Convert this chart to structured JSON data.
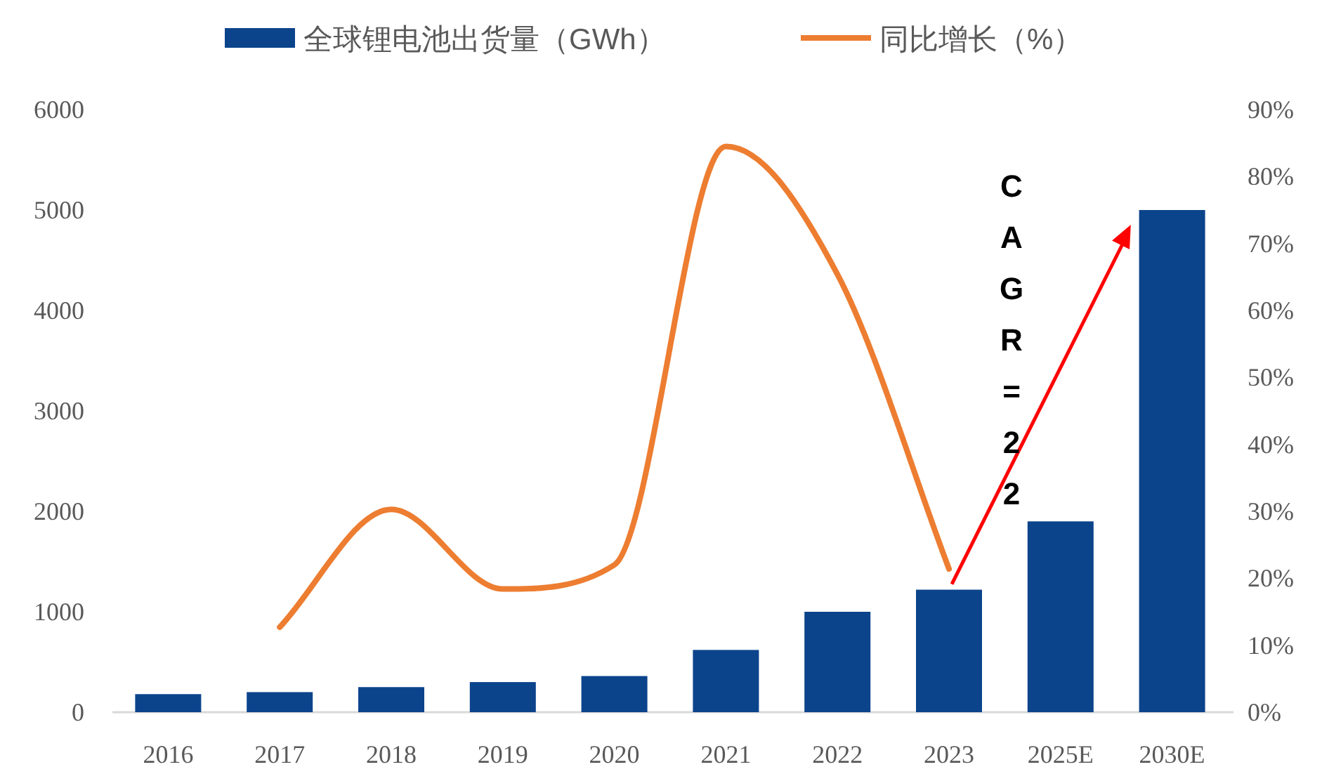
{
  "chart_data": {
    "type": "bar",
    "categories": [
      "2016",
      "2017",
      "2018",
      "2019",
      "2020",
      "2021",
      "2022",
      "2023",
      "2025E",
      "2030E"
    ],
    "series": [
      {
        "name": "全球锂电池出货量（GWh）",
        "type": "bar",
        "color": "#0c448c",
        "values": [
          180,
          200,
          250,
          300,
          360,
          620,
          1000,
          1220,
          1900,
          5000
        ]
      },
      {
        "name": "同比增长（%）",
        "type": "line",
        "axis": "y2",
        "color": "#ed7d31",
        "values": [
          null,
          12.7,
          30.3,
          18.4,
          22,
          84.5,
          65.4,
          21.4,
          null,
          null
        ]
      }
    ],
    "ylim": [
      0,
      6000
    ],
    "yticks": [
      0,
      1000,
      2000,
      3000,
      4000,
      5000,
      6000
    ],
    "y2lim": [
      0,
      90
    ],
    "y2ticks": [
      {
        "value": 0,
        "label": "0%"
      },
      {
        "value": 10,
        "label": "10%"
      },
      {
        "value": 20,
        "label": "20%"
      },
      {
        "value": 30,
        "label": "30%"
      },
      {
        "value": 40,
        "label": "40%"
      },
      {
        "value": 50,
        "label": "50%"
      },
      {
        "value": 60,
        "label": "60%"
      },
      {
        "value": 70,
        "label": "70%"
      },
      {
        "value": 80,
        "label": "80%"
      },
      {
        "value": 90,
        "label": "90%"
      }
    ],
    "legend": "top",
    "annotations": [
      "CAGR=22"
    ]
  }
}
